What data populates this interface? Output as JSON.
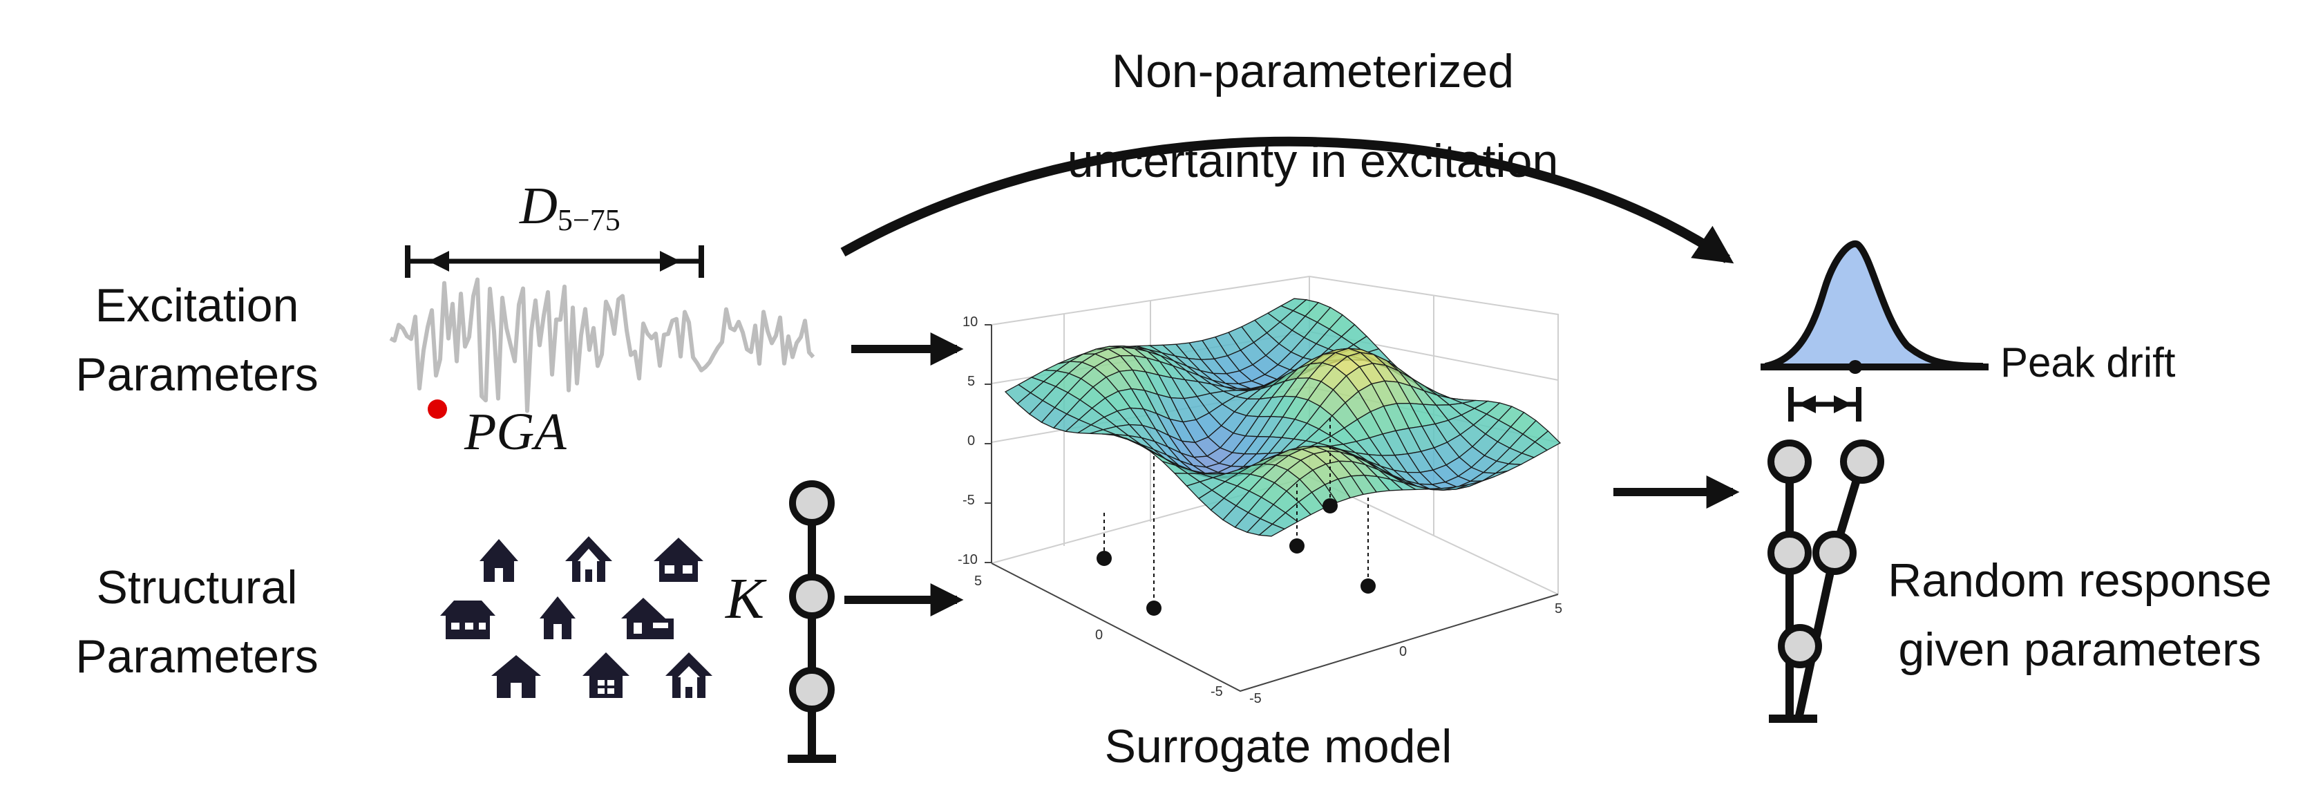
{
  "labels": {
    "excitation_params": [
      "Excitation",
      "Parameters"
    ],
    "structural_params": [
      "Structural",
      "Parameters"
    ],
    "nonparam": [
      "Non-parameterized",
      "uncertainty in excitation"
    ],
    "surrogate": "Surrogate model",
    "peak_drift": "Peak drift",
    "random_response": [
      "Random response",
      "given parameters"
    ],
    "duration_main": "D",
    "duration_sub": "5−75",
    "pga": "PGA",
    "stiffness": "K"
  },
  "axis_ticks": {
    "z": [
      "10",
      "5",
      "0",
      "-5",
      "-10"
    ],
    "y": [
      "5",
      "0",
      "-5"
    ],
    "x": [
      "-5",
      "0",
      "5"
    ]
  },
  "colors": {
    "ink": "#111111",
    "signal": "#bdbdbd",
    "pga_dot": "#e00000",
    "house": "#1c1b2e",
    "node_fill": "#d6d6d6",
    "pdf_fill": "#a9c6f0"
  },
  "icons": [
    "house-icon",
    "house-icon",
    "house-icon",
    "house-icon",
    "house-icon",
    "house-icon",
    "house-icon",
    "house-icon",
    "house-icon"
  ]
}
